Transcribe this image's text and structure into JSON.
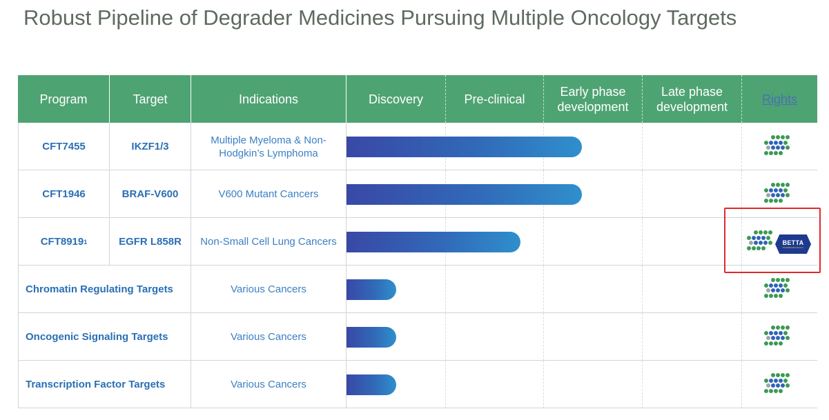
{
  "title": "Robust Pipeline of Degrader Medicines Pursuing Multiple Oncology Targets",
  "colors": {
    "header_bg": "#4ea372",
    "bar_start": "#3948a6",
    "bar_end": "#2f8fcc",
    "highlight": "#e0282c",
    "dot_green": "#3a9a52",
    "dot_blue": "#2f63b8",
    "dot_gray": "#a0a4a8"
  },
  "headers": {
    "program": "Program",
    "target": "Target",
    "indications": "Indications",
    "discovery": "Discovery",
    "preclinical": "Pre-clinical",
    "early": "Early phase development",
    "late": "Late phase development",
    "rights": "Rights"
  },
  "stages": [
    "Discovery",
    "Pre-clinical",
    "Early phase development",
    "Late phase development"
  ],
  "rows": [
    {
      "program": "CFT7455",
      "target": "IKZF1/3",
      "indication": "Multiple Myeloma & Non-Hodgkin’s Lymphoma",
      "progress": 0.5,
      "rights": [
        "C4 Therapeutics logo"
      ]
    },
    {
      "program": "CFT1946",
      "target": "BRAF-V600",
      "indication": "V600 Mutant Cancers",
      "progress": 0.5,
      "rights": [
        "C4 Therapeutics logo"
      ]
    },
    {
      "program": "CFT8919",
      "footnote": "1",
      "target": "EGFR L858R",
      "indication": "Non-Small Cell Lung Cancers",
      "progress": 0.37,
      "rights": [
        "C4 Therapeutics logo",
        "Betta Pharmaceuticals logo"
      ]
    },
    {
      "program": "Chromatin Regulating Targets",
      "indication": "Various Cancers",
      "progress": 0.105,
      "rights": [
        "C4 Therapeutics logo"
      ]
    },
    {
      "program": "Oncogenic Signaling Targets",
      "indication": "Various Cancers",
      "progress": 0.105,
      "rights": [
        "C4 Therapeutics logo"
      ]
    },
    {
      "program": "Transcription Factor Targets",
      "indication": "Various Cancers",
      "progress": 0.105,
      "rights": [
        "C4 Therapeutics logo"
      ]
    }
  ],
  "betta_logo": {
    "text": "BETTA",
    "subtext": "PHARMACEUTICALS"
  }
}
